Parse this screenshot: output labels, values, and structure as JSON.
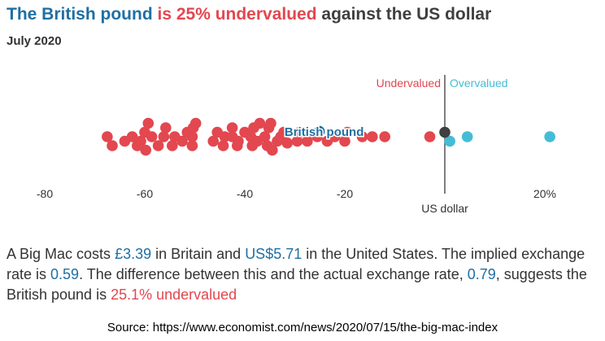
{
  "header": {
    "title_part1": "The British pound",
    "title_part2": " is 25% undervalued",
    "title_part3": " against the US dollar",
    "subtitle": "July 2020"
  },
  "colors": {
    "undervalued": "#e3474f",
    "overvalued": "#45bcd6",
    "highlight": "#1f6fa3",
    "usd": "#3f3f3f",
    "axis_text": "#333333"
  },
  "chart_data": {
    "type": "scatter",
    "subtype": "beeswarm",
    "xlabel": "",
    "ylabel": "",
    "xlim": [
      -88,
      23
    ],
    "x_ticks": [
      {
        "value": -80,
        "label": "-80"
      },
      {
        "value": -60,
        "label": "-60"
      },
      {
        "value": -40,
        "label": "-40"
      },
      {
        "value": -20,
        "label": "-20"
      },
      {
        "value": 20,
        "label": "20%"
      }
    ],
    "reference_line": {
      "value": 0,
      "label": "US dollar"
    },
    "legend": {
      "undervalued": "Undervalued",
      "overvalued": "Overvalued"
    },
    "highlight": {
      "label": "British pound",
      "value": -25.1
    },
    "undervalued_points": [
      [
        -67.5,
        0
      ],
      [
        -66.5,
        1
      ],
      [
        -64,
        0.5
      ],
      [
        -62.5,
        0
      ],
      [
        -61.5,
        1
      ],
      [
        -60.8,
        0.5
      ],
      [
        -60,
        -0.5
      ],
      [
        -59.8,
        1.5
      ],
      [
        -59.3,
        -1.5
      ],
      [
        -58.6,
        0
      ],
      [
        -57.3,
        1
      ],
      [
        -56.2,
        0
      ],
      [
        -55.8,
        -1
      ],
      [
        -54.5,
        1
      ],
      [
        -54,
        0
      ],
      [
        -52.5,
        0.5
      ],
      [
        -51.5,
        -0.5
      ],
      [
        -50.5,
        1
      ],
      [
        -50.5,
        0
      ],
      [
        -50.3,
        -1
      ],
      [
        -49.8,
        -1.5
      ],
      [
        -46.3,
        0.5
      ],
      [
        -45.5,
        -0.5
      ],
      [
        -44.3,
        1
      ],
      [
        -44,
        0
      ],
      [
        -42.5,
        -1
      ],
      [
        -42.5,
        0
      ],
      [
        -41.5,
        1
      ],
      [
        -41.3,
        0.5
      ],
      [
        -40,
        -0.5
      ],
      [
        -38.8,
        0
      ],
      [
        -38.5,
        1
      ],
      [
        -38.2,
        -1
      ],
      [
        -37.5,
        0.5
      ],
      [
        -37,
        -1.5
      ],
      [
        -36,
        0
      ],
      [
        -35.5,
        1
      ],
      [
        -35.2,
        -1
      ],
      [
        -34.8,
        -1.5
      ],
      [
        -34.5,
        1.5
      ],
      [
        -33.5,
        0.5
      ],
      [
        -32.8,
        0
      ],
      [
        -32.2,
        -0.5
      ],
      [
        -31.5,
        0.7
      ],
      [
        -29.5,
        0.5
      ],
      [
        -29,
        -0.5
      ],
      [
        -27.5,
        0.5
      ],
      [
        -25.5,
        0
      ],
      [
        -23.5,
        0.5
      ],
      [
        -22,
        0
      ],
      [
        -20,
        0.5
      ],
      [
        -19.5,
        -0.5
      ],
      [
        -16.5,
        0
      ],
      [
        -14.5,
        0
      ],
      [
        -12,
        0
      ],
      [
        -3,
        0
      ]
    ],
    "overvalued_points": [
      [
        1,
        0.5
      ],
      [
        4.5,
        0
      ],
      [
        21,
        0
      ]
    ],
    "usd_point": [
      0,
      -0.5
    ]
  },
  "description": {
    "p1": "A Big Mac costs ",
    "gbp_price": "£3.39",
    "p2": " in Britain and ",
    "usd_price": "US$5.71",
    "p3": " in the United States. The implied exchange rate is ",
    "implied_rate": "0.59",
    "p4": ". The difference between this and the actual exchange rate, ",
    "actual_rate": "0.79",
    "p5": ", suggests the British pound is ",
    "undervalued_text": "25.1% undervalued"
  },
  "source": "Source: https://www.economist.com/news/2020/07/15/the-big-mac-index"
}
